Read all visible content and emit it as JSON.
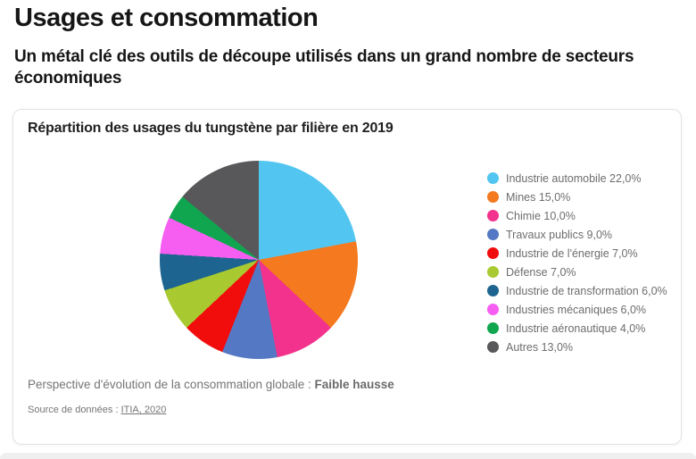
{
  "page": {
    "title": "Usages et consommation",
    "subtitle": "Un métal clé des outils de découpe utilisés dans un grand nombre de secteurs économiques"
  },
  "card": {
    "chart_title": "Répartition des usages du tungstène par filière en 2019",
    "perspective_label": "Perspective d'évolution de la consommation globale : ",
    "perspective_value": "Faible hausse",
    "source_label": "Source de données : ",
    "source_link": "ITIA, 2020"
  },
  "chart_data": {
    "type": "pie",
    "title": "Répartition des usages du tungstène par filière en 2019",
    "unit": "%",
    "start_angle_deg": 0,
    "direction": "clockwise",
    "legend_position": "right",
    "legend_marker": "circle",
    "slices": [
      {
        "label": "Industrie automobile",
        "value": 22.0,
        "color": "#52C6F0"
      },
      {
        "label": "Mines",
        "value": 15.0,
        "color": "#F4791F"
      },
      {
        "label": "Chimie",
        "value": 10.0,
        "color": "#F2328C"
      },
      {
        "label": "Travaux publics",
        "value": 9.0,
        "color": "#5478C3"
      },
      {
        "label": "Industrie de l'énergie",
        "value": 7.0,
        "color": "#F20D0D"
      },
      {
        "label": "Défense",
        "value": 7.0,
        "color": "#A9C930"
      },
      {
        "label": "Industrie de transformation",
        "value": 6.0,
        "color": "#1D6590"
      },
      {
        "label": "Industries mécaniques",
        "value": 6.0,
        "color": "#F65EF2"
      },
      {
        "label": "Industrie aéronautique",
        "value": 4.0,
        "color": "#0FA64F"
      },
      {
        "label": "Autres",
        "value": 13.0,
        "color": "#58585A"
      }
    ]
  }
}
